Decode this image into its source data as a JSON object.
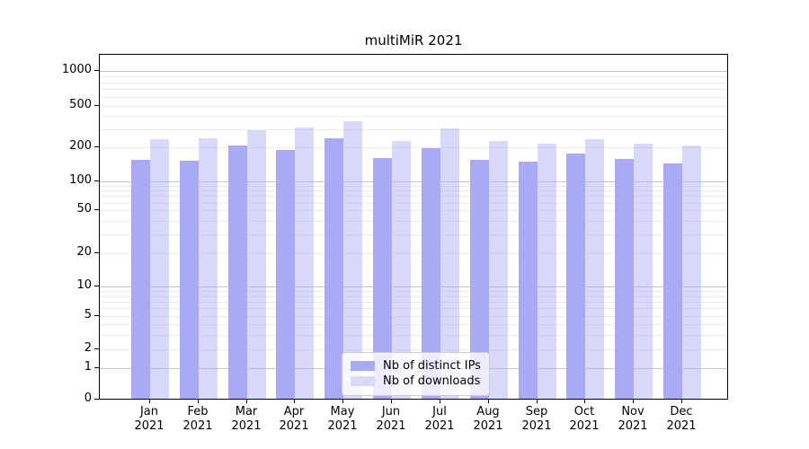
{
  "chart_data": {
    "type": "bar",
    "title": "multiMiR 2021",
    "categories": [
      "Jan 2021",
      "Feb 2021",
      "Mar 2021",
      "Apr 2021",
      "May 2021",
      "Jun 2021",
      "Jul 2021",
      "Aug 2021",
      "Sep 2021",
      "Oct 2021",
      "Nov 2021",
      "Dec 2021"
    ],
    "series": [
      {
        "name": "Nb of distinct IPs",
        "color": "#a9a9f4",
        "values": [
          152,
          149,
          206,
          185,
          240,
          159,
          194,
          152,
          148,
          174,
          156,
          142
        ]
      },
      {
        "name": "Nb of downloads",
        "color": "#d9d9f8",
        "values": [
          234,
          240,
          286,
          302,
          351,
          224,
          297,
          226,
          212,
          235,
          212,
          203
        ]
      }
    ],
    "y_ticks": [
      0,
      1,
      2,
      5,
      10,
      20,
      50,
      100,
      200,
      500,
      1000
    ],
    "y_scale": "symlog",
    "ylim": [
      0,
      1400
    ],
    "xlabel": "",
    "ylabel": "",
    "grid": true,
    "legend_position": "lower center"
  },
  "colors": {
    "bar_distinct_ips": "#a9a9f4",
    "bar_downloads": "#d9d9f8",
    "grid_major": "#c6c6c6",
    "grid_minor": "#ececec",
    "axis": "#000000",
    "legend_border": "#cccccc"
  }
}
